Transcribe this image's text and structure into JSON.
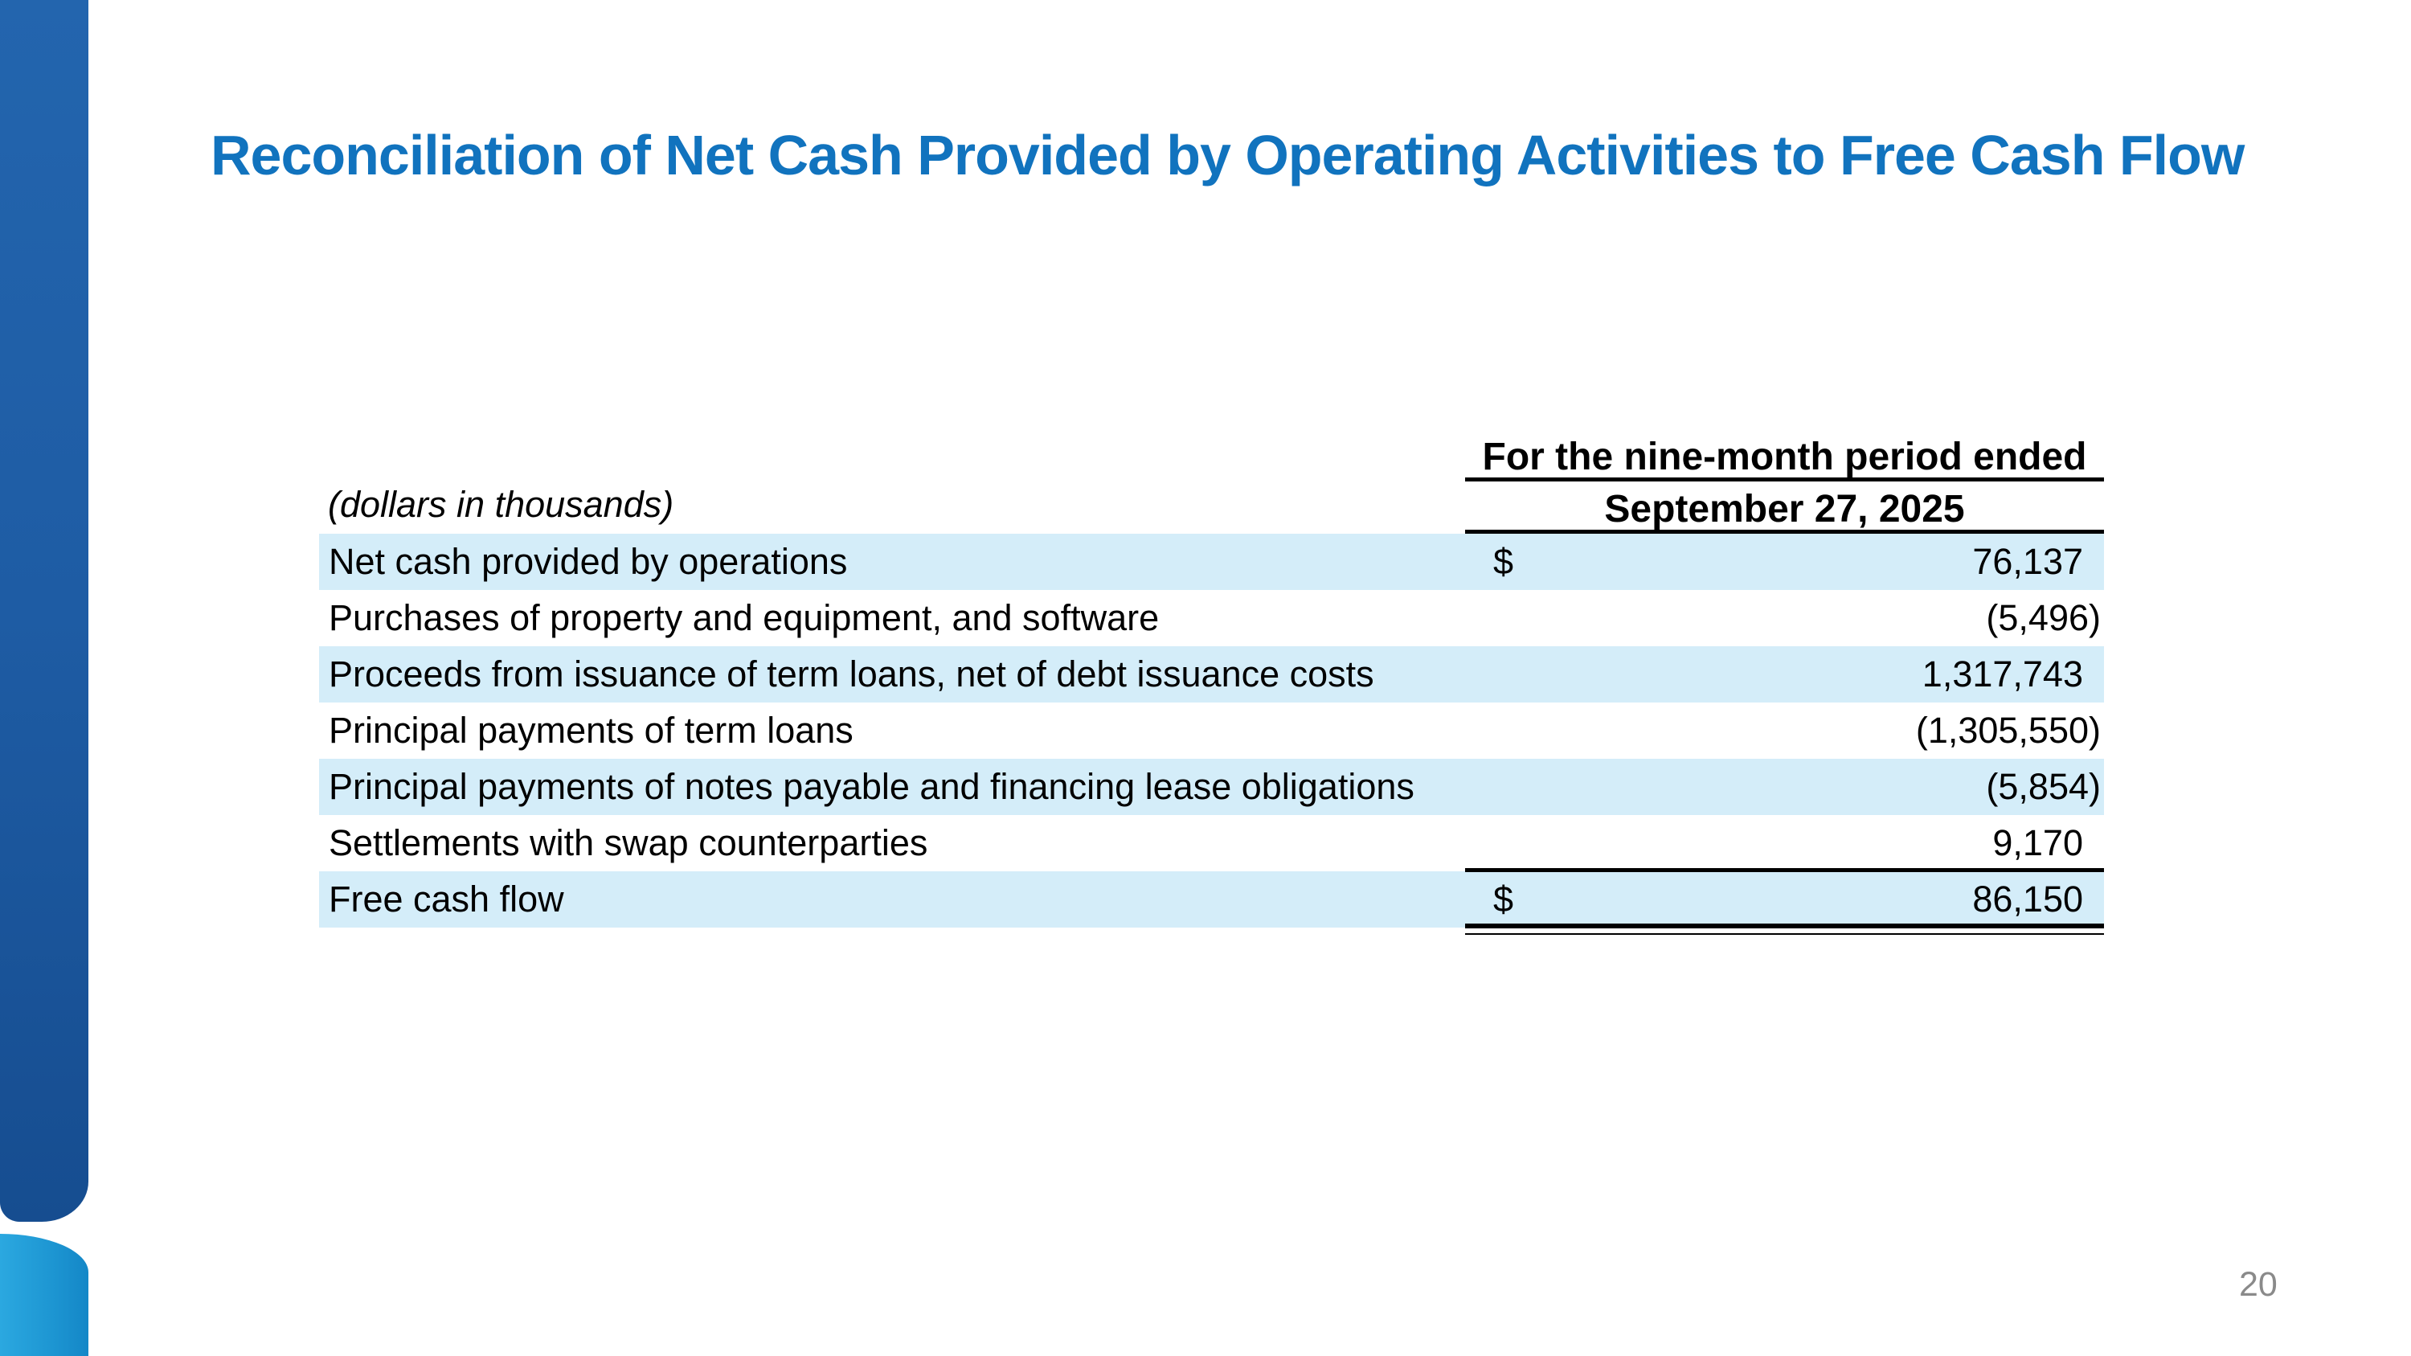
{
  "slide": {
    "title": "Reconciliation of Net Cash Provided by Operating Activities to Free Cash Flow",
    "page_number": "20"
  },
  "table": {
    "units_note": "(dollars in thousands)",
    "period_header": "For the nine-month period ended",
    "date_header": "September 27, 2025",
    "rows": [
      {
        "label": "Net cash provided by operations",
        "currency": "$",
        "value": "76,137",
        "highlighted": true
      },
      {
        "label": "Purchases of property and equipment, and software",
        "currency": "",
        "value": "(5,496)",
        "highlighted": false
      },
      {
        "label": "Proceeds from issuance of term loans, net of debt issuance costs",
        "currency": "",
        "value": "1,317,743",
        "highlighted": true
      },
      {
        "label": "Principal payments of term loans",
        "currency": "",
        "value": "(1,305,550)",
        "highlighted": false
      },
      {
        "label": "Principal payments of notes payable and financing lease obligations",
        "currency": "",
        "value": "(5,854)",
        "highlighted": true
      },
      {
        "label": "Settlements with swap counterparties",
        "currency": "",
        "value": "9,170",
        "highlighted": false
      },
      {
        "label": "Free cash flow",
        "currency": "$",
        "value": "86,150",
        "highlighted": true
      }
    ]
  },
  "colors": {
    "title_blue": "#1173BE",
    "row_highlight": "#D4EDF9",
    "sidebar_dark_top": "#2365AE",
    "sidebar_dark_bottom": "#164D90",
    "sidebar_light_left": "#2BA8E0",
    "sidebar_light_right": "#1487C7",
    "rule_black": "#000000",
    "page_number_gray": "#8A8A8A"
  }
}
